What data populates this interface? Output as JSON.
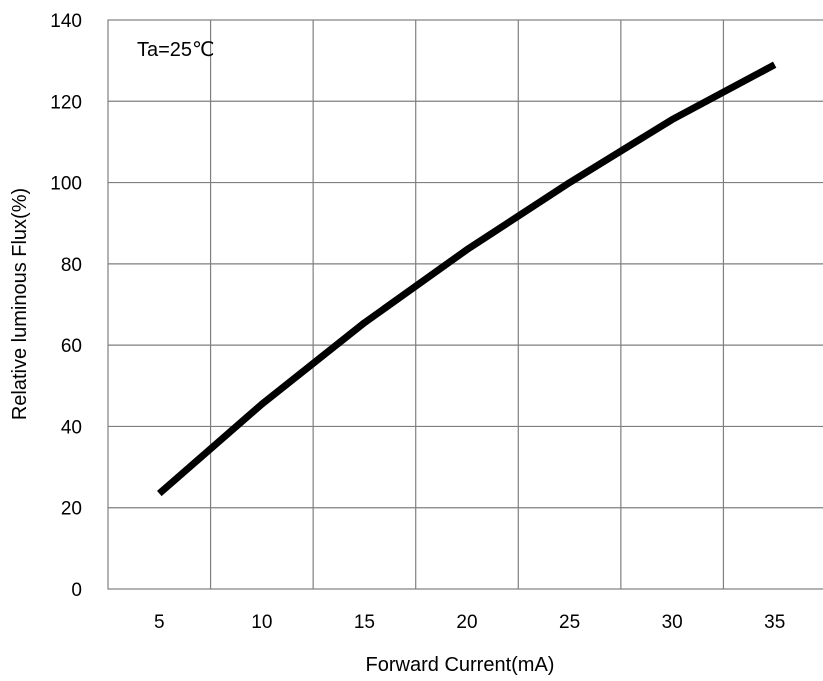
{
  "chart_data": {
    "type": "line",
    "xlabel": "Forward Current(mA)",
    "ylabel": "Relative luminous Flux(%)",
    "annotation": "Ta=25℃",
    "x_categories": [
      5,
      10,
      15,
      20,
      25,
      30,
      35
    ],
    "ylim": [
      0,
      140
    ],
    "yticks": [
      0,
      20,
      40,
      60,
      80,
      100,
      120,
      140
    ],
    "grid": true,
    "series": [
      {
        "color": "#000000",
        "x": [
          5,
          10,
          15,
          20,
          25,
          30,
          35
        ],
        "y": [
          23.5,
          45.5,
          65.5,
          83.5,
          100,
          115.5,
          129
        ]
      }
    ]
  }
}
